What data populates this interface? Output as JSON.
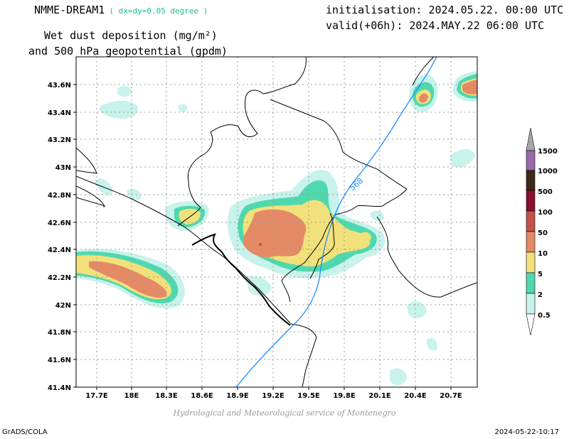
{
  "header": {
    "model": "NMME-DREAM1",
    "resolution": "( dx=dy=0.05 degree )",
    "title_line1": "Wet dust deposition (mg/m²)",
    "title_line2": "and 500 hPa geopotential (gpdm)",
    "init": "initialisation: 2024.05.22. 00:00 UTC",
    "valid": "valid(+06h): 2024.MAY.22 06:00 UTC"
  },
  "axes": {
    "lat_labels": [
      "43.6N",
      "43.4N",
      "43.2N",
      "43N",
      "42.8N",
      "42.6N",
      "42.4N",
      "42.2N",
      "42N",
      "41.8N",
      "41.6N",
      "41.4N"
    ],
    "lon_labels": [
      "17.7E",
      "18E",
      "18.3E",
      "18.6E",
      "18.9E",
      "19.2E",
      "19.5E",
      "19.8E",
      "20.1E",
      "20.4E",
      "20.7E"
    ]
  },
  "contour": {
    "label": "568",
    "color": "#1e90ff"
  },
  "legend": {
    "levels": [
      "1500",
      "1000",
      "500",
      "100",
      "50",
      "10",
      "5",
      "2",
      "0.5"
    ],
    "colors": {
      "c0": "#c8f2ec",
      "c1": "#4fd8ae",
      "c2": "#f2e17a",
      "c3": "#e48a66",
      "c4": "#c0524a",
      "c5": "#8a1030",
      "c6": "#3e2a18",
      "c7": "#9a6aa8",
      "c8": "#a8a8a8"
    }
  },
  "footer": {
    "credit": "Hydrological and Meteorological service of Montenegro",
    "software": "GrADS/COLA",
    "timestamp": "2024-05-22-10:17"
  }
}
